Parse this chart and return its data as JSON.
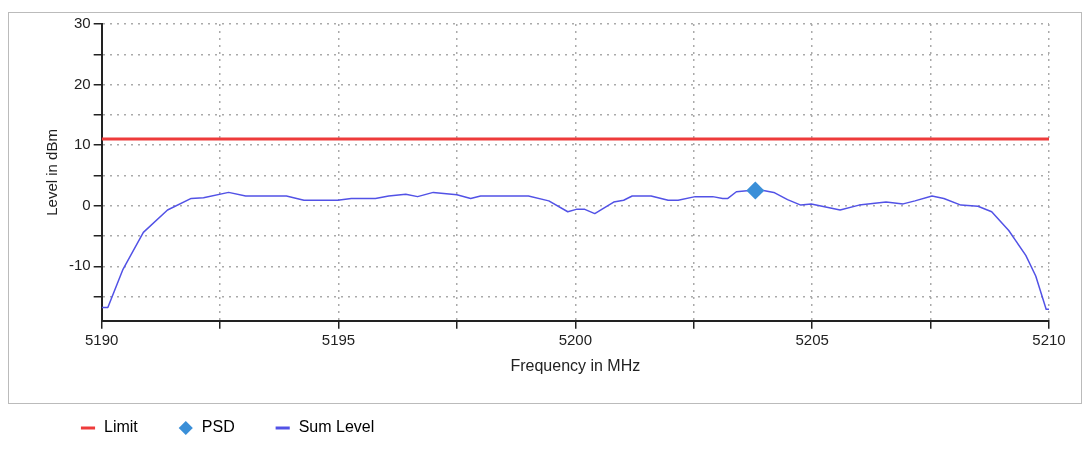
{
  "chart_data": {
    "type": "line",
    "xlabel": "Frequency in MHz",
    "ylabel": "Level in dBm",
    "xlim": [
      5190,
      5210
    ],
    "xticks": [
      5190,
      {
        "value": 5192.5,
        "label": null
      },
      5195,
      {
        "value": 5197.5,
        "label": null
      },
      5200,
      {
        "value": 5202.5,
        "label": null
      },
      5205,
      {
        "value": 5207.5,
        "label": null
      },
      5210
    ],
    "ylim": [
      -19,
      30
    ],
    "yticks": [
      {
        "value": -15,
        "label": null
      },
      -10,
      {
        "value": -5,
        "label": null
      },
      0,
      {
        "value": 5,
        "label": null
      },
      10,
      {
        "value": 15,
        "label": null
      },
      20,
      {
        "value": 25,
        "label": null
      },
      30
    ],
    "grid": true,
    "legend": "bottom left",
    "marker": "none",
    "line_style": "solid",
    "series": [
      {
        "name": "Limit",
        "color": "#ee3b3b",
        "x": [
          5190,
          5210
        ],
        "values": [
          11,
          11
        ]
      },
      {
        "name": "PSD",
        "type": "scatter",
        "marker": "diamond",
        "color": "#3a8fd8",
        "x": [
          5203.8
        ],
        "values": [
          2.5
        ]
      },
      {
        "name": "Sum Level",
        "color": "#5252e6",
        "x": [
          5190.0,
          5190.13,
          5190.45,
          5190.88,
          5191.39,
          5191.89,
          5192.15,
          5192.68,
          5193.04,
          5193.9,
          5194.27,
          5194.98,
          5195.27,
          5195.78,
          5196.06,
          5196.42,
          5196.67,
          5197.0,
          5197.5,
          5197.79,
          5198.0,
          5199.01,
          5199.44,
          5199.84,
          5200.02,
          5200.2,
          5200.41,
          5200.81,
          5201.02,
          5201.2,
          5201.6,
          5201.96,
          5202.17,
          5202.53,
          5202.9,
          5203.11,
          5203.22,
          5203.4,
          5203.68,
          5203.97,
          5204.19,
          5204.48,
          5204.76,
          5204.98,
          5205.59,
          5205.99,
          5206.56,
          5206.92,
          5207.17,
          5207.53,
          5207.78,
          5208.14,
          5208.5,
          5208.79,
          5209.15,
          5209.51,
          5209.72,
          5209.94,
          5210.0
        ],
        "values": [
          -16.8,
          -16.8,
          -10.5,
          -4.4,
          -0.7,
          1.2,
          1.3,
          2.2,
          1.6,
          1.6,
          0.9,
          0.9,
          1.2,
          1.2,
          1.6,
          1.9,
          1.5,
          2.2,
          1.8,
          1.2,
          1.6,
          1.6,
          0.8,
          -1.0,
          -0.6,
          -0.6,
          -1.3,
          0.6,
          0.9,
          1.6,
          1.6,
          0.9,
          0.9,
          1.5,
          1.5,
          1.2,
          1.2,
          2.3,
          2.5,
          2.5,
          2.2,
          1.0,
          0.1,
          0.3,
          -0.7,
          0.1,
          0.6,
          0.3,
          0.8,
          1.6,
          1.2,
          0.1,
          -0.1,
          -1.0,
          -4.1,
          -8.2,
          -11.6,
          -17.1,
          -17.1
        ]
      }
    ]
  }
}
